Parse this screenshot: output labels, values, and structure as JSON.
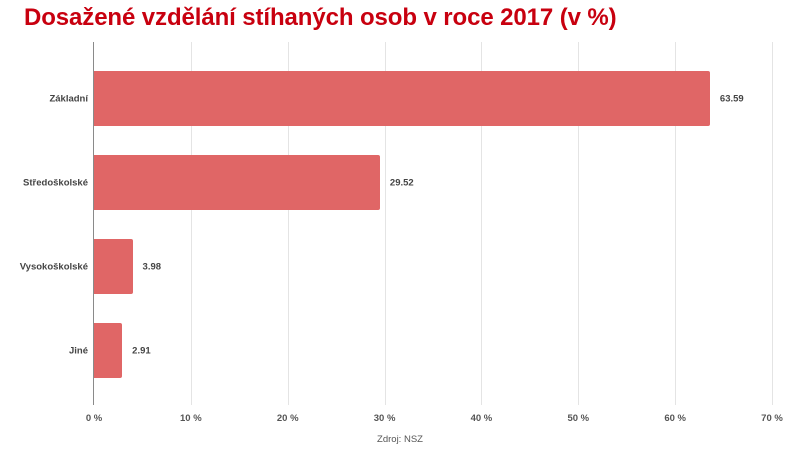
{
  "title": "Dosažené vzdělání stíhaných osob v roce 2017 (v %)",
  "source": "Zdroj: NSZ",
  "colors": {
    "title": "#c8000f",
    "bar": "#e06666"
  },
  "chart_data": {
    "type": "bar",
    "orientation": "horizontal",
    "title": "Dosažené vzdělání stíhaných osob v roce 2017 (v %)",
    "categories": [
      "Základní",
      "Středoškolské",
      "Vysokoškolské",
      "Jiné"
    ],
    "values": [
      63.59,
      29.52,
      3.98,
      2.91
    ],
    "value_labels": [
      "63.59",
      "29.52",
      "3.98",
      "2.91"
    ],
    "xlabel": "",
    "ylabel": "",
    "xlim": [
      0,
      70
    ],
    "x_ticks": [
      0,
      10,
      20,
      30,
      40,
      50,
      60,
      70
    ],
    "x_tick_labels": [
      "0 %",
      "10 %",
      "20 %",
      "30 %",
      "40 %",
      "50 %",
      "60 %",
      "70 %"
    ],
    "grid": "vertical",
    "legend": "none",
    "source": "Zdroj: NSZ"
  }
}
